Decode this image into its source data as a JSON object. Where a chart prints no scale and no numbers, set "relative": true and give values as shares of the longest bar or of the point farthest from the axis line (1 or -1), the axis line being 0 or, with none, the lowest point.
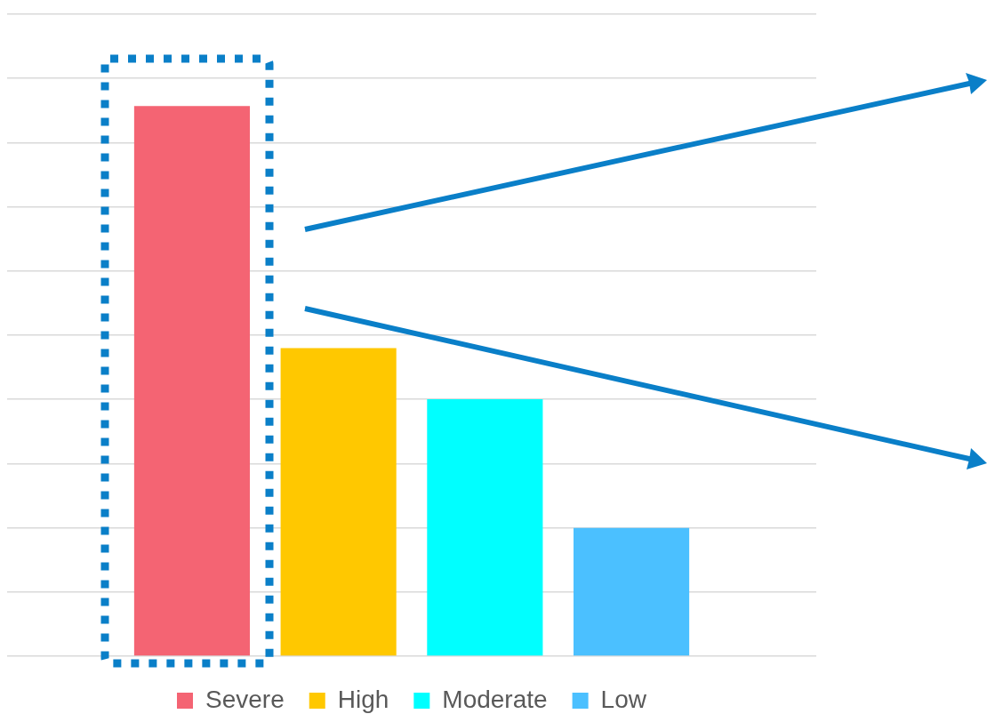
{
  "chart_data": {
    "type": "bar",
    "relative": true,
    "categories": [
      null
    ],
    "series": [
      {
        "name": "Severe",
        "color": "#f46473",
        "values": [
          1
        ]
      },
      {
        "name": "High",
        "color": "#ffc800",
        "values": [
          0.56
        ]
      },
      {
        "name": "Moderate",
        "color": "#00ffff",
        "values": [
          0.467
        ]
      },
      {
        "name": "Low",
        "color": "#4bc0ff",
        "values": [
          0.233
        ]
      }
    ],
    "grid": "y",
    "legend": "bottom"
  }
}
